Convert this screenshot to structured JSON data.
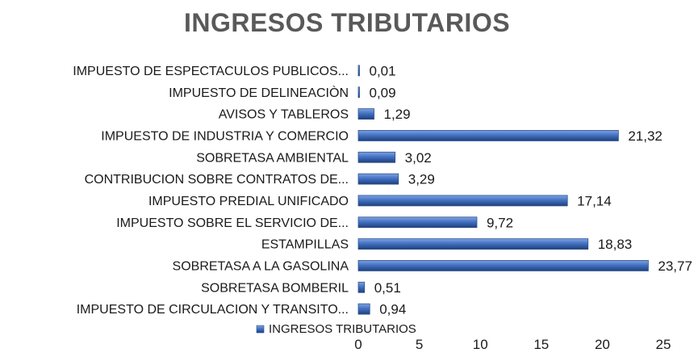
{
  "chart_data": {
    "type": "bar",
    "orientation": "horizontal",
    "title": "INGRESOS TRIBUTARIOS",
    "categories": [
      "IMPUESTO DE ESPECTACULOS PUBLICOS...",
      "IMPUESTO DE DELINEACIÒN",
      "AVISOS Y TABLEROS",
      "IMPUESTO DE INDUSTRIA Y COMERCIO",
      "SOBRETASA AMBIENTAL",
      "CONTRIBUCION SOBRE CONTRATOS DE...",
      "IMPUESTO PREDIAL UNIFICADO",
      "IMPUESTO SOBRE EL SERVICIO DE...",
      "ESTAMPILLAS",
      "SOBRETASA A LA GASOLINA",
      "SOBRETASA BOMBERIL",
      "IMPUESTO DE CIRCULACION Y TRANSITO..."
    ],
    "series": [
      {
        "name": "INGRESOS TRIBUTARIOS",
        "values": [
          0.01,
          0.09,
          1.29,
          21.32,
          3.02,
          3.29,
          17.14,
          9.72,
          18.83,
          23.77,
          0.51,
          0.94
        ],
        "value_labels": [
          "0,01",
          "0,09",
          "1,29",
          "21,32",
          "3,02",
          "3,29",
          "17,14",
          "9,72",
          "18,83",
          "23,77",
          "0,51",
          "0,94"
        ]
      }
    ],
    "xlim": [
      0,
      25
    ],
    "xticks": [
      0,
      5,
      10,
      15,
      20,
      25
    ],
    "grid": false,
    "legend": "bottom-left",
    "bar_color": "#4472C4",
    "bar_color_dark": "#2F528F"
  }
}
